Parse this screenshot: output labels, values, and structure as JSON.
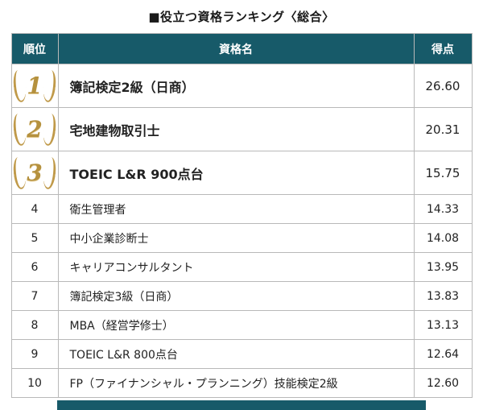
{
  "title": "■役立つ資格ランキング〈総合〉",
  "table": {
    "headers": {
      "rank": "順位",
      "name": "資格名",
      "score": "得点"
    },
    "rows": [
      {
        "rank": "1",
        "name": "簿記検定2級（日商）",
        "score": "26.60",
        "top3": true
      },
      {
        "rank": "2",
        "name": "宅地建物取引士",
        "score": "20.31",
        "top3": true
      },
      {
        "rank": "3",
        "name": "TOEIC L&R 900点台",
        "score": "15.75",
        "top3": true
      },
      {
        "rank": "4",
        "name": "衛生管理者",
        "score": "14.33",
        "top3": false
      },
      {
        "rank": "5",
        "name": "中小企業診断士",
        "score": "14.08",
        "top3": false
      },
      {
        "rank": "6",
        "name": "キャリアコンサルタント",
        "score": "13.95",
        "top3": false
      },
      {
        "rank": "7",
        "name": "簿記検定3級（日商）",
        "score": "13.83",
        "top3": false
      },
      {
        "rank": "8",
        "name": "MBA（経営学修士）",
        "score": "13.13",
        "top3": false
      },
      {
        "rank": "9",
        "name": "TOEIC L&R 800点台",
        "score": "12.64",
        "top3": false
      },
      {
        "rank": "10",
        "name": "FP（ファイナンシャル・プランニング）技能検定2級",
        "score": "12.60",
        "top3": false
      }
    ]
  },
  "colors": {
    "header_bg": "#175a69",
    "gold": "#b5913e",
    "border": "#b9b9b9"
  },
  "chart_data": {
    "type": "table",
    "title": "役立つ資格ランキング〈総合〉",
    "columns": [
      "順位",
      "資格名",
      "得点"
    ],
    "categories": [
      "簿記検定2級（日商）",
      "宅地建物取引士",
      "TOEIC L&R 900点台",
      "衛生管理者",
      "中小企業診断士",
      "キャリアコンサルタント",
      "簿記検定3級（日商）",
      "MBA（経営学修士）",
      "TOEIC L&R 800点台",
      "FP（ファイナンシャル・プランニング）技能検定2級"
    ],
    "values": [
      26.6,
      20.31,
      15.75,
      14.33,
      14.08,
      13.95,
      13.83,
      13.13,
      12.64,
      12.6
    ],
    "ranks": [
      1,
      2,
      3,
      4,
      5,
      6,
      7,
      8,
      9,
      10
    ]
  }
}
